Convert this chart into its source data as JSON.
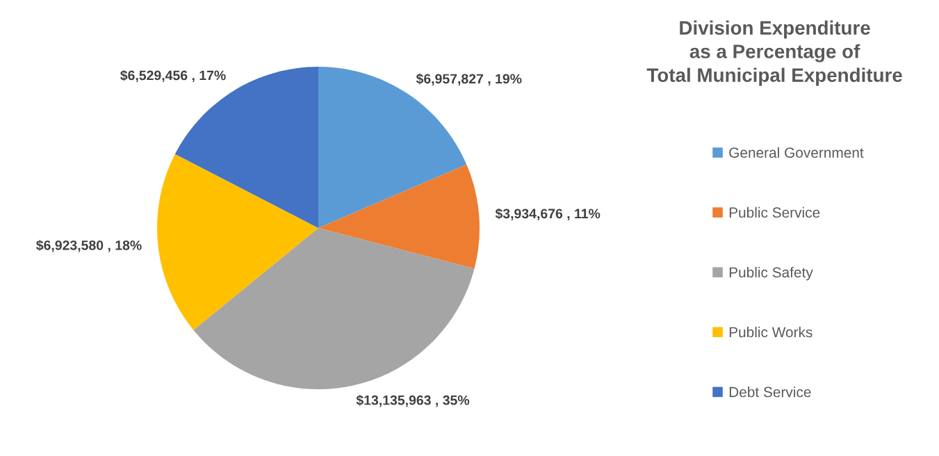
{
  "chart_data": {
    "type": "pie",
    "title": "Division Expenditure\nas a Percentage of\nTotal Municipal Expenditure",
    "categories": [
      "General Government",
      "Public Service",
      "Public Safety",
      "Public Works",
      "Debt Service"
    ],
    "values": [
      6957827,
      3934676,
      13135963,
      6923580,
      6529456
    ],
    "colors": [
      "#5b9bd5",
      "#ed7d31",
      "#a5a5a5",
      "#ffc000",
      "#4472c4"
    ],
    "value_labels": [
      "$6,957,827 , 19%",
      "$3,934,676 , 11%",
      "$13,135,963 , 35%",
      "$6,923,580 , 18%",
      "$6,529,456 , 17%"
    ],
    "legend": "right"
  }
}
